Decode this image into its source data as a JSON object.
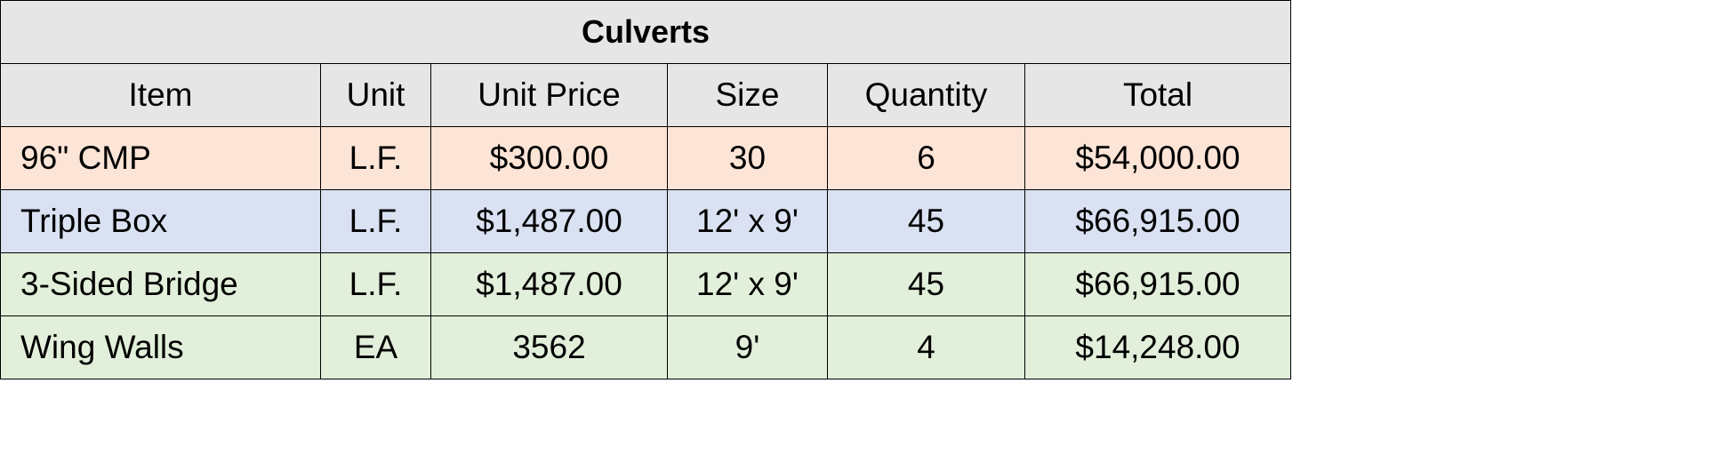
{
  "table": {
    "title": "Culverts",
    "header": [
      "Item",
      "Unit",
      "Unit Price",
      "Size",
      "Quantity",
      "Total"
    ],
    "rows": [
      [
        "96\" CMP",
        "L.F.",
        "$300.00",
        "30",
        "6",
        "$54,000.00"
      ],
      [
        "Triple Box",
        "L.F.",
        "$1,487.00",
        "12' x 9'",
        "45",
        "$66,915.00"
      ],
      [
        "3-Sided Bridge",
        "L.F.",
        "$1,487.00",
        "12' x 9'",
        "45",
        "$66,915.00"
      ],
      [
        "Wing Walls",
        "EA",
        "3562",
        "9'",
        "4",
        "$14,248.00"
      ]
    ]
  }
}
